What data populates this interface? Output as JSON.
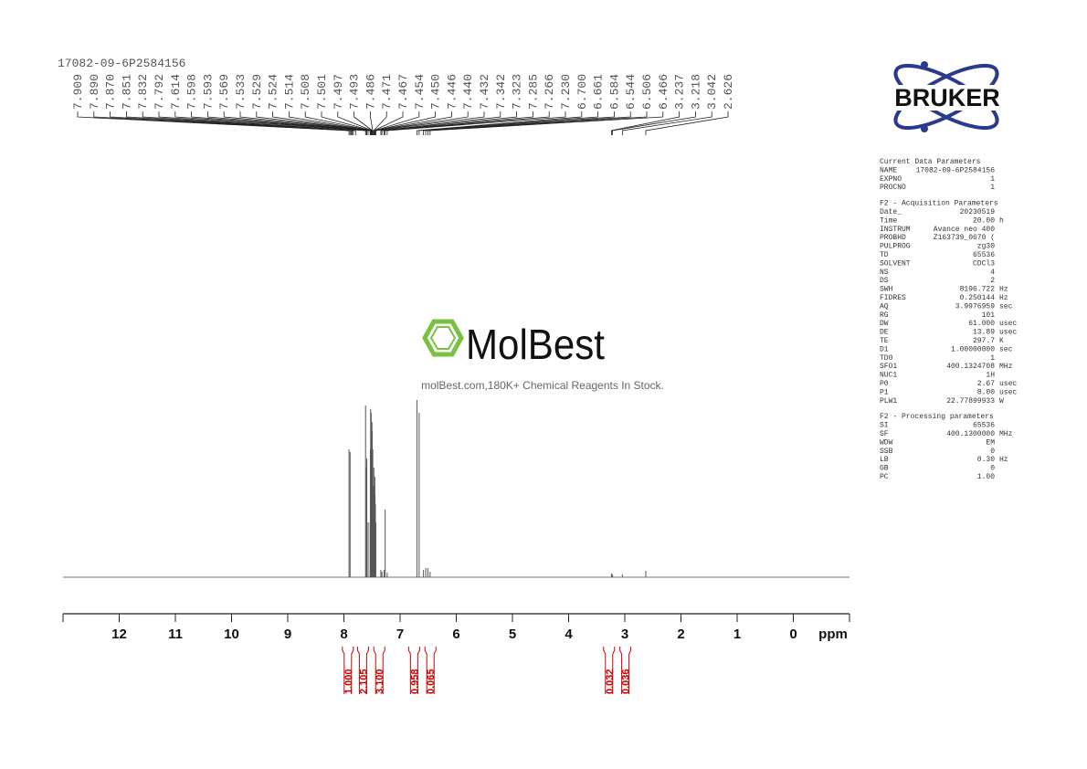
{
  "chart_data": {
    "type": "spectrum",
    "title": "17082-09-6P2584156",
    "xlabel": "ppm",
    "xlim": [
      13,
      -1
    ],
    "xticks": [
      12,
      11,
      10,
      9,
      8,
      7,
      6,
      5,
      4,
      3,
      2,
      1,
      0
    ],
    "ylim": [
      0,
      200
    ],
    "color": "#555555",
    "peaks": {
      "values": [
        7.909,
        7.89,
        7.87,
        7.851,
        7.832,
        7.792,
        7.614,
        7.598,
        7.593,
        7.569,
        7.533,
        7.529,
        7.524,
        7.514,
        7.508,
        7.501,
        7.497,
        7.493,
        7.486,
        7.471,
        7.467,
        7.454,
        7.45,
        7.446,
        7.44,
        7.432,
        7.342,
        7.323,
        7.285,
        7.266,
        7.23,
        6.7,
        6.661,
        6.584,
        6.544,
        6.506,
        6.466,
        3.237,
        3.218,
        3.042,
        2.626
      ],
      "value_labels": [
        "7.909",
        "7.890",
        "7.870",
        "7.851",
        "7.832",
        "7.792",
        "7.614",
        "7.598",
        "7.593",
        "7.569",
        "7.533",
        "7.529",
        "7.524",
        "7.514",
        "7.508",
        "7.501",
        "7.497",
        "7.493",
        "7.486",
        "7.471",
        "7.467",
        "7.454",
        "7.450",
        "7.446",
        "7.440",
        "7.432",
        "7.342",
        "7.323",
        "7.285",
        "7.266",
        "7.230",
        "6.700",
        "6.661",
        "6.584",
        "6.544",
        "6.506",
        "6.466",
        "3.237",
        "3.218",
        "3.042",
        "2.626"
      ]
    },
    "signals": {
      "x": [
        7.909,
        7.89,
        7.614,
        7.598,
        7.593,
        7.569,
        7.533,
        7.529,
        7.524,
        7.514,
        7.508,
        7.501,
        7.497,
        7.493,
        7.486,
        7.471,
        7.467,
        7.454,
        7.45,
        7.446,
        7.44,
        7.432,
        7.342,
        7.323,
        7.285,
        7.266,
        7.23,
        6.7,
        6.661,
        6.584,
        6.544,
        6.506,
        6.466,
        3.237,
        3.218,
        3.042,
        2.626
      ],
      "y": [
        140,
        137,
        188,
        120,
        130,
        60,
        60,
        140,
        184,
        180,
        150,
        170,
        160,
        120,
        140,
        100,
        120,
        100,
        110,
        90,
        80,
        60,
        8,
        6,
        8,
        74,
        5,
        194,
        180,
        8,
        10,
        10,
        6,
        4,
        3,
        3,
        7
      ]
    },
    "integrals": {
      "x": [
        7.93,
        7.66,
        7.37,
        6.75,
        6.46,
        3.28,
        2.99
      ],
      "values": [
        1,
        2.105,
        3.1,
        0.958,
        0.065,
        0.032,
        0.036
      ],
      "value_labels": [
        "1.000",
        "2.105",
        "3.100",
        "0.958",
        "0.065",
        "0.032",
        "0.036"
      ],
      "color": "#cc0000"
    },
    "watermark": {
      "brand": "MolBest",
      "tagline": "molBest.com,180K+ Chemical Reagents In Stock."
    },
    "logo": "BRUKER",
    "parameters": [
      {
        "title": "Current Data Parameters",
        "rows": [
          [
            "NAME",
            "17082-09-6P2584156",
            ""
          ],
          [
            "EXPNO",
            "1",
            ""
          ],
          [
            "PROCNO",
            "1",
            ""
          ]
        ]
      },
      {
        "title": "F2 - Acquisition Parameters",
        "rows": [
          [
            "Date_",
            "20230519",
            ""
          ],
          [
            "Time",
            "20.00",
            "h"
          ],
          [
            "INSTRUM",
            "Avance neo 400",
            ""
          ],
          [
            "PROBHD",
            "Z163739_0670 (",
            ""
          ],
          [
            "PULPROG",
            "zg30",
            ""
          ],
          [
            "TD",
            "65536",
            ""
          ],
          [
            "SOLVENT",
            "CDCl3",
            ""
          ],
          [
            "NS",
            "4",
            ""
          ],
          [
            "DS",
            "2",
            ""
          ],
          [
            "SWH",
            "8196.722",
            "Hz"
          ],
          [
            "FIDRES",
            "0.250144",
            "Hz"
          ],
          [
            "AQ",
            "3.9976959",
            "sec"
          ],
          [
            "RG",
            "101",
            ""
          ],
          [
            "DW",
            "61.000",
            "usec"
          ],
          [
            "DE",
            "13.89",
            "usec"
          ],
          [
            "TE",
            "297.7",
            "K"
          ],
          [
            "D1",
            "1.00000000",
            "sec"
          ],
          [
            "TD0",
            "1",
            ""
          ],
          [
            "SFO1",
            "400.1324708",
            "MHz"
          ],
          [
            "NUC1",
            "1H",
            ""
          ],
          [
            "P0",
            "2.67",
            "usec"
          ],
          [
            "P1",
            "8.00",
            "usec"
          ],
          [
            "PLW1",
            "22.77899933",
            "W"
          ]
        ]
      },
      {
        "title": "F2 - Processing parameters",
        "rows": [
          [
            "SI",
            "65536",
            ""
          ],
          [
            "SF",
            "400.1300000",
            "MHz"
          ],
          [
            "WDW",
            "EM",
            ""
          ],
          [
            "SSB",
            "0",
            ""
          ],
          [
            "LB",
            "0.30",
            "Hz"
          ],
          [
            "GB",
            "0",
            ""
          ],
          [
            "PC",
            "1.00",
            ""
          ]
        ]
      }
    ]
  }
}
